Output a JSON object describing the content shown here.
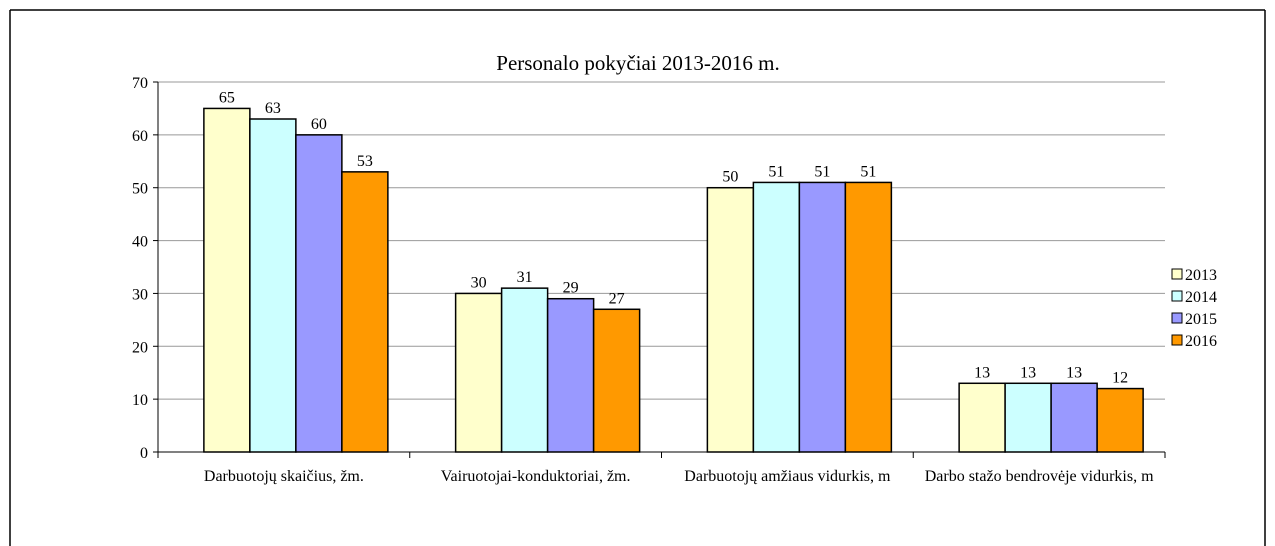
{
  "chart_data": {
    "type": "bar",
    "title": "Personalo pokyčiai 2013-2016 m.",
    "categories": [
      "Darbuotojų skaičius, žm.",
      "Vairuotojai-konduktoriai, žm.",
      "Darbuotojų amžiaus vidurkis, m",
      "Darbo stažo bendrovėje vidurkis, m"
    ],
    "series": [
      {
        "name": "2013",
        "color": "#ffffcc",
        "values": [
          65,
          30,
          50,
          13
        ]
      },
      {
        "name": "2014",
        "color": "#ccffff",
        "values": [
          63,
          31,
          51,
          13
        ]
      },
      {
        "name": "2015",
        "color": "#9999ff",
        "values": [
          60,
          29,
          51,
          13
        ]
      },
      {
        "name": "2016",
        "color": "#ff9900",
        "values": [
          53,
          27,
          51,
          12
        ]
      }
    ],
    "ylim": [
      0,
      70
    ],
    "yticks": [
      0,
      10,
      20,
      30,
      40,
      50,
      60,
      70
    ],
    "grid": true,
    "legend": "right"
  }
}
